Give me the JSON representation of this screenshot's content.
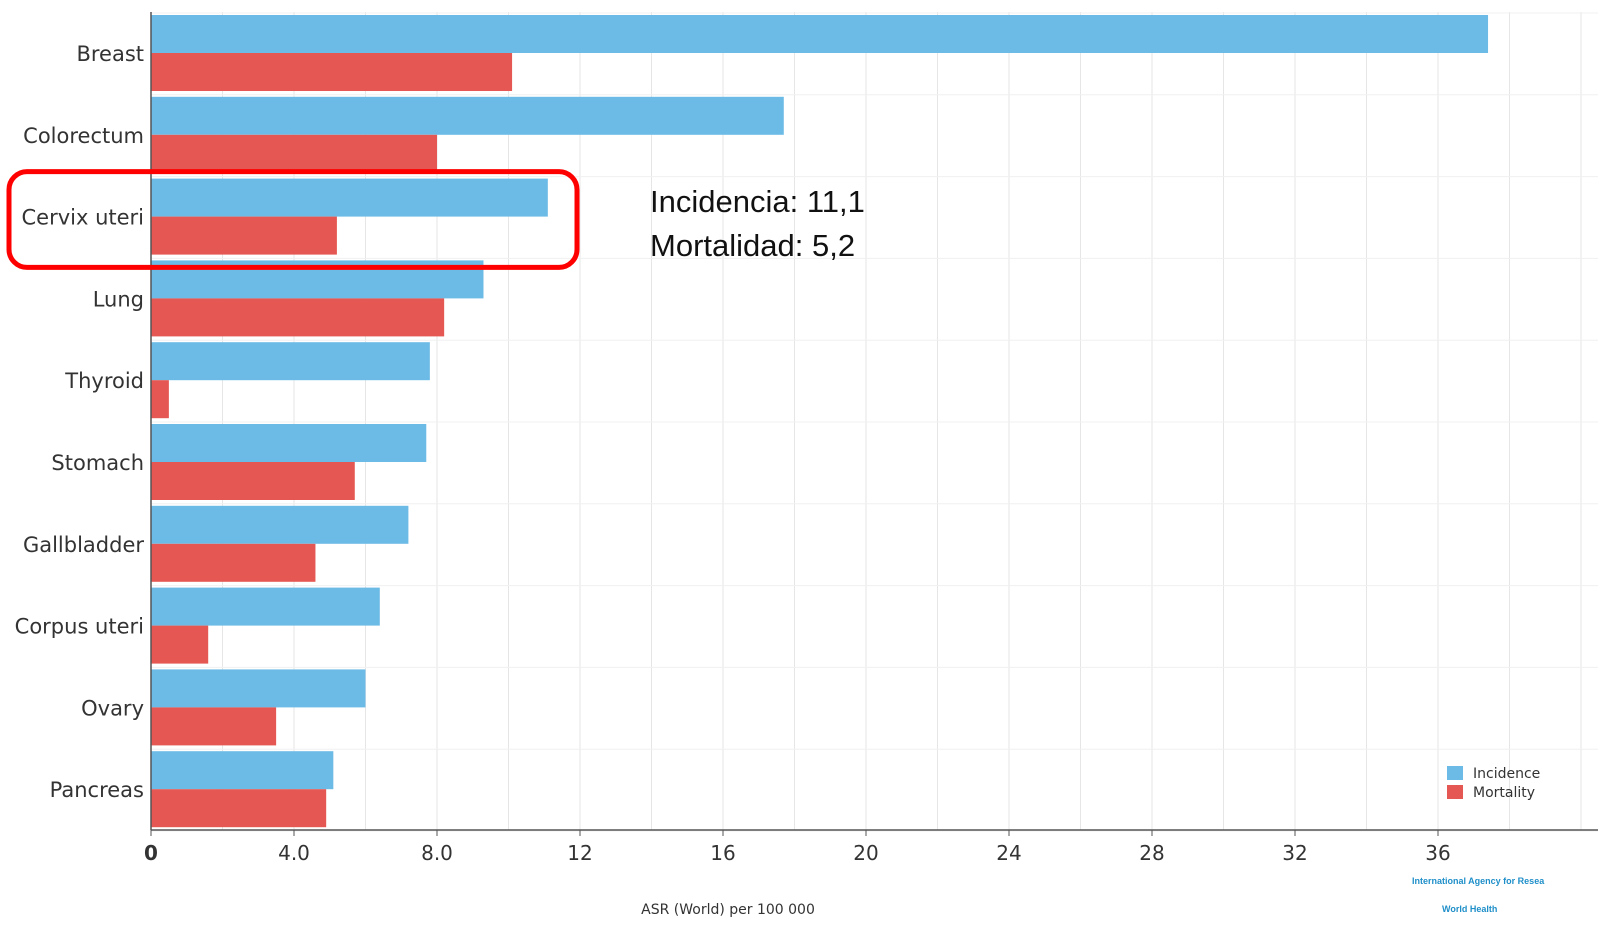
{
  "chart_data": {
    "type": "bar",
    "orientation": "horizontal",
    "categories": [
      "Breast",
      "Colorectum",
      "Cervix uteri",
      "Lung",
      "Thyroid",
      "Stomach",
      "Gallbladder",
      "Corpus uteri",
      "Ovary",
      "Pancreas"
    ],
    "series": [
      {
        "name": "Incidence",
        "color": "#6cbbe6",
        "values": [
          37.4,
          17.7,
          11.1,
          9.3,
          7.8,
          7.7,
          7.2,
          6.4,
          6.0,
          5.1
        ]
      },
      {
        "name": "Mortality",
        "color": "#e55752",
        "values": [
          10.1,
          8.0,
          5.2,
          8.2,
          0.5,
          5.7,
          4.6,
          1.6,
          3.5,
          4.9
        ]
      }
    ],
    "xlabel": "ASR (World) per 100 000",
    "xlim": [
      0,
      39
    ],
    "xticks": [
      "0",
      "4.0",
      "8.0",
      "12",
      "16",
      "20",
      "24",
      "28",
      "32",
      "36"
    ],
    "grid": true,
    "legend": "bottom-right"
  },
  "annotation": {
    "highlight_category": "Cervix uteri",
    "lines": [
      "Incidencia: 11,1",
      "Mortalidad: 5,2"
    ],
    "box_color": "#ff0000"
  },
  "logos": {
    "right_line1": "International Agency for Resea",
    "right_line2": "World Health"
  }
}
